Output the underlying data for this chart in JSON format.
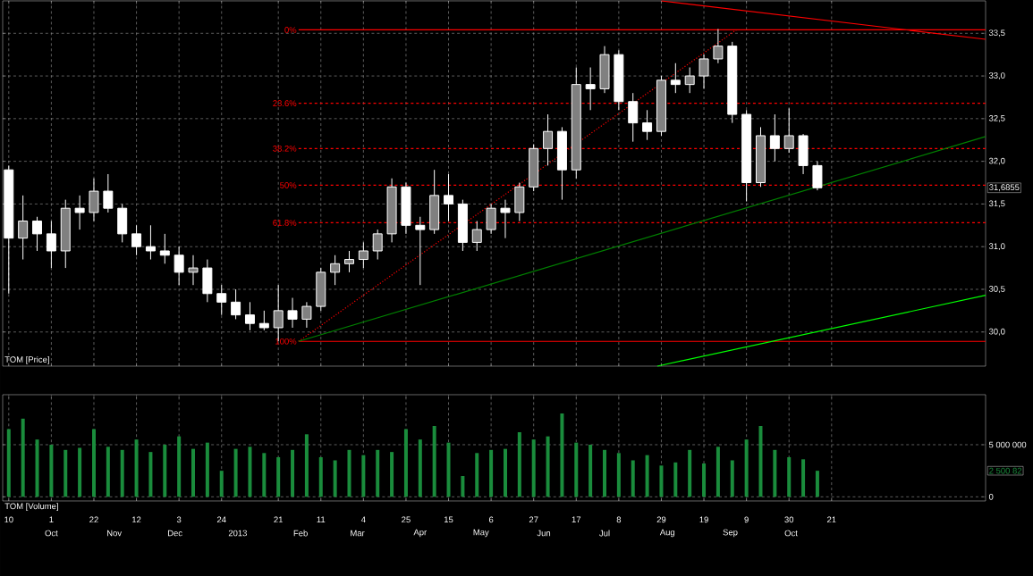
{
  "chart_data": [
    {
      "type": "candlestick",
      "title": "TOM [Price]",
      "x": [
        "2012-09-10",
        "2012-09-17",
        "2012-09-24",
        "2012-10-01",
        "2012-10-08",
        "2012-10-15",
        "2012-10-22",
        "2012-10-29",
        "2012-11-05",
        "2012-11-12",
        "2012-11-19",
        "2012-11-26",
        "2012-12-03",
        "2012-12-10",
        "2012-12-17",
        "2012-12-24",
        "2012-12-31",
        "2013-01-07",
        "2013-01-14",
        "2013-01-21",
        "2013-01-28",
        "2013-02-04",
        "2013-02-11",
        "2013-02-18",
        "2013-02-25",
        "2013-03-04",
        "2013-03-11",
        "2013-03-18",
        "2013-03-25",
        "2013-04-01",
        "2013-04-08",
        "2013-04-15",
        "2013-04-22",
        "2013-04-29",
        "2013-05-06",
        "2013-05-13",
        "2013-05-20",
        "2013-05-27",
        "2013-06-03",
        "2013-06-10",
        "2013-06-17",
        "2013-06-24",
        "2013-07-01",
        "2013-07-08",
        "2013-07-15",
        "2013-07-22",
        "2013-07-29",
        "2013-08-05",
        "2013-08-12",
        "2013-08-19",
        "2013-08-26",
        "2013-09-02",
        "2013-09-09",
        "2013-09-16",
        "2013-09-23",
        "2013-09-30",
        "2013-10-07",
        "2013-10-14"
      ],
      "ohlc": [
        [
          31.9,
          31.95,
          30.45,
          31.1
        ],
        [
          31.1,
          31.6,
          30.85,
          31.3
        ],
        [
          31.3,
          31.35,
          30.95,
          31.15
        ],
        [
          31.15,
          31.3,
          30.75,
          30.95
        ],
        [
          30.95,
          31.55,
          30.75,
          31.45
        ],
        [
          31.45,
          31.6,
          31.2,
          31.4
        ],
        [
          31.4,
          31.8,
          31.3,
          31.65
        ],
        [
          31.65,
          31.85,
          31.4,
          31.45
        ],
        [
          31.45,
          31.5,
          31.05,
          31.15
        ],
        [
          31.15,
          31.25,
          30.9,
          31.0
        ],
        [
          31.0,
          31.25,
          30.85,
          30.95
        ],
        [
          30.95,
          31.15,
          30.8,
          30.9
        ],
        [
          30.9,
          31.0,
          30.55,
          30.7
        ],
        [
          30.7,
          30.9,
          30.55,
          30.75
        ],
        [
          30.75,
          30.85,
          30.35,
          30.45
        ],
        [
          30.45,
          30.55,
          30.2,
          30.35
        ],
        [
          30.35,
          30.5,
          30.15,
          30.2
        ],
        [
          30.2,
          30.35,
          30.02,
          30.1
        ],
        [
          30.1,
          30.25,
          30.02,
          30.05
        ],
        [
          30.05,
          30.55,
          29.89,
          30.25
        ],
        [
          30.25,
          30.4,
          30.05,
          30.15
        ],
        [
          30.15,
          30.35,
          30.05,
          30.3
        ],
        [
          30.3,
          30.75,
          30.25,
          30.7
        ],
        [
          30.7,
          30.9,
          30.55,
          30.8
        ],
        [
          30.8,
          30.95,
          30.7,
          30.85
        ],
        [
          30.85,
          31.05,
          30.75,
          30.95
        ],
        [
          30.95,
          31.2,
          30.85,
          31.15
        ],
        [
          31.15,
          31.8,
          31.05,
          31.7
        ],
        [
          31.7,
          31.75,
          31.15,
          31.25
        ],
        [
          31.25,
          31.35,
          30.55,
          31.2
        ],
        [
          31.2,
          31.9,
          31.15,
          31.6
        ],
        [
          31.6,
          31.85,
          31.3,
          31.5
        ],
        [
          31.5,
          31.55,
          30.95,
          31.05
        ],
        [
          31.05,
          31.3,
          30.95,
          31.2
        ],
        [
          31.2,
          31.5,
          31.15,
          31.45
        ],
        [
          31.45,
          31.55,
          31.1,
          31.4
        ],
        [
          31.4,
          31.75,
          31.3,
          31.7
        ],
        [
          31.7,
          32.2,
          31.65,
          32.15
        ],
        [
          32.15,
          32.55,
          31.95,
          32.35
        ],
        [
          32.35,
          32.4,
          31.55,
          31.9
        ],
        [
          31.9,
          33.1,
          31.8,
          32.9
        ],
        [
          32.9,
          33.1,
          32.6,
          32.85
        ],
        [
          32.85,
          33.35,
          32.8,
          33.25
        ],
        [
          33.25,
          33.3,
          32.6,
          32.7
        ],
        [
          32.7,
          32.8,
          32.23,
          32.45
        ],
        [
          32.45,
          32.6,
          32.25,
          32.35
        ],
        [
          32.35,
          33.0,
          32.3,
          32.95
        ],
        [
          32.95,
          33.15,
          32.8,
          32.9
        ],
        [
          32.9,
          33.1,
          32.8,
          33.0
        ],
        [
          33.0,
          33.25,
          32.85,
          33.2
        ],
        [
          33.2,
          33.55,
          33.15,
          33.35
        ],
        [
          33.35,
          33.4,
          32.45,
          32.55
        ],
        [
          32.55,
          32.6,
          31.53,
          31.75
        ],
        [
          31.75,
          32.4,
          31.7,
          32.3
        ],
        [
          32.3,
          32.55,
          32.0,
          32.15
        ],
        [
          32.15,
          32.62,
          32.1,
          32.3
        ],
        [
          32.3,
          32.32,
          31.85,
          31.95
        ],
        [
          31.95,
          32.0,
          31.66,
          31.69
        ]
      ],
      "series": [
        {
          "type": "line",
          "name": "0%",
          "color": "#ff0000",
          "x": [
            "2013-01-31",
            "2014-01-05"
          ],
          "values": [
            33.54,
            33.54
          ]
        },
        {
          "type": "line",
          "name": "23.6%",
          "color": "#ff0000",
          "line_style": "dashed",
          "x": [
            "2013-01-31",
            "2014-01-05"
          ],
          "values": [
            32.68,
            32.68
          ]
        },
        {
          "type": "line",
          "name": "38.2%",
          "color": "#ff0000",
          "line_style": "dashed",
          "x": [
            "2013-01-31",
            "2014-01-05"
          ],
          "values": [
            32.15,
            32.15
          ]
        },
        {
          "type": "line",
          "name": "50%",
          "color": "#ff0000",
          "line_style": "dashed",
          "x": [
            "2013-01-31",
            "2014-01-05"
          ],
          "values": [
            31.72,
            31.72
          ]
        },
        {
          "type": "line",
          "name": "61.8%",
          "color": "#ff0000",
          "line_style": "dashed",
          "x": [
            "2013-01-31",
            "2014-01-05"
          ],
          "values": [
            31.28,
            31.28
          ]
        },
        {
          "type": "line",
          "name": "100%",
          "color": "#ff0000",
          "x": [
            "2013-01-31",
            "2014-01-05"
          ],
          "values": [
            29.89,
            29.89
          ]
        },
        {
          "type": "line",
          "color": "#ff0000",
          "line_style": "dotted",
          "x": [
            "2013-01-31",
            "2013-09-04"
          ],
          "values": [
            29.89,
            33.54
          ]
        },
        {
          "type": "line",
          "color": "#ff0000",
          "x": [
            "2013-07-29",
            "2014-01-05"
          ],
          "values": [
            33.88,
            33.43
          ]
        },
        {
          "type": "line",
          "color": "#008000",
          "x": [
            "2013-01-31",
            "2014-01-05"
          ],
          "values": [
            29.89,
            32.29
          ]
        },
        {
          "type": "line",
          "color": "#00ff00",
          "x": [
            "2013-07-27",
            "2014-01-05"
          ],
          "values": [
            29.6,
            30.43
          ]
        }
      ],
      "xlim": [
        "2012-09-07",
        "2014-01-05"
      ],
      "ylim": [
        29.6,
        33.88
      ],
      "xticks": [
        {
          "value": "2012-09-10",
          "label": null
        },
        {
          "value": "2012-10-01",
          "label": null
        },
        {
          "value": "2012-10-22",
          "label": null
        },
        {
          "value": "2012-11-12",
          "label": null
        },
        {
          "value": "2012-12-03",
          "label": null
        },
        {
          "value": "2012-12-24",
          "label": null
        },
        {
          "value": "2013-01-21",
          "label": null
        },
        {
          "value": "2013-02-11",
          "label": null
        },
        {
          "value": "2013-03-04",
          "label": null
        },
        {
          "value": "2013-03-25",
          "label": null
        },
        {
          "value": "2013-04-15",
          "label": null
        },
        {
          "value": "2013-05-06",
          "label": null
        },
        {
          "value": "2013-05-27",
          "label": null
        },
        {
          "value": "2013-06-17",
          "label": null
        },
        {
          "value": "2013-07-08",
          "label": null
        },
        {
          "value": "2013-07-29",
          "label": null
        },
        {
          "value": "2013-08-19",
          "label": null
        },
        {
          "value": "2013-09-09",
          "label": null
        },
        {
          "value": "2013-09-30",
          "label": null
        },
        {
          "value": "2013-10-21",
          "label": null
        }
      ],
      "yticks": [
        {
          "value": 30.0,
          "label": "30,0"
        },
        {
          "value": 30.5,
          "label": "30,5"
        },
        {
          "value": 31.0,
          "label": "31,0"
        },
        {
          "value": 31.5,
          "label": "31,5"
        },
        {
          "value": 32.0,
          "label": "32,0"
        },
        {
          "value": 32.5,
          "label": "32,5"
        },
        {
          "value": 33.0,
          "label": "33,0"
        },
        {
          "value": 33.5,
          "label": "33,5"
        }
      ],
      "grid": true,
      "tick_labels": "y",
      "annotations": [
        "31,6855"
      ]
    },
    {
      "type": "bar",
      "title": "TOM [Volume]",
      "color": "#1a8c3c",
      "x": [
        "2012-09-10",
        "2012-09-17",
        "2012-09-24",
        "2012-10-01",
        "2012-10-08",
        "2012-10-15",
        "2012-10-22",
        "2012-10-29",
        "2012-11-05",
        "2012-11-12",
        "2012-11-19",
        "2012-11-26",
        "2012-12-03",
        "2012-12-10",
        "2012-12-17",
        "2012-12-24",
        "2012-12-31",
        "2013-01-07",
        "2013-01-14",
        "2013-01-21",
        "2013-01-28",
        "2013-02-04",
        "2013-02-11",
        "2013-02-18",
        "2013-02-25",
        "2013-03-04",
        "2013-03-11",
        "2013-03-18",
        "2013-03-25",
        "2013-04-01",
        "2013-04-08",
        "2013-04-15",
        "2013-04-22",
        "2013-04-29",
        "2013-05-06",
        "2013-05-13",
        "2013-05-20",
        "2013-05-27",
        "2013-06-03",
        "2013-06-10",
        "2013-06-17",
        "2013-06-24",
        "2013-07-01",
        "2013-07-08",
        "2013-07-15",
        "2013-07-22",
        "2013-07-29",
        "2013-08-05",
        "2013-08-12",
        "2013-08-19",
        "2013-08-26",
        "2013-09-02",
        "2013-09-09",
        "2013-09-16",
        "2013-09-23",
        "2013-09-30",
        "2013-10-07",
        "2013-10-14"
      ],
      "values": [
        6500000,
        7500000,
        5500000,
        5000000,
        4500000,
        4700000,
        6500000,
        4800000,
        4500000,
        5500000,
        4300000,
        5000000,
        5800000,
        4600000,
        5200000,
        2500000,
        4600000,
        4800000,
        4200000,
        3800000,
        4500000,
        6000000,
        3800000,
        3500000,
        4500000,
        4000000,
        4500000,
        4300000,
        6500000,
        5500000,
        6800000,
        5200000,
        2000000,
        4200000,
        4500000,
        4600000,
        6200000,
        5500000,
        5800000,
        8000000,
        5200000,
        5000000,
        4500000,
        4200000,
        3500000,
        4000000,
        3000000,
        3300000,
        4500000,
        3200000,
        4800000,
        3500000,
        5500000,
        6800000,
        4500000,
        3800000,
        3600000,
        2500000
      ],
      "xlim": [
        "2012-09-07",
        "2014-01-05"
      ],
      "ylim": [
        -400000,
        9800000
      ],
      "xticks": [
        {
          "value": "2012-09-10",
          "label": "10"
        },
        {
          "value": "2012-10-01",
          "label": "1"
        },
        {
          "value": "2012-10-22",
          "label": "22"
        },
        {
          "value": "2012-11-12",
          "label": "12"
        },
        {
          "value": "2012-12-03",
          "label": "3"
        },
        {
          "value": "2012-12-24",
          "label": "24"
        },
        {
          "value": "2013-01-21",
          "label": "21"
        },
        {
          "value": "2013-02-11",
          "label": "11"
        },
        {
          "value": "2013-03-04",
          "label": "4"
        },
        {
          "value": "2013-03-25",
          "label": "25"
        },
        {
          "value": "2013-04-15",
          "label": "15"
        },
        {
          "value": "2013-05-06",
          "label": "6"
        },
        {
          "value": "2013-05-27",
          "label": "27"
        },
        {
          "value": "2013-06-17",
          "label": "17"
        },
        {
          "value": "2013-07-08",
          "label": "8"
        },
        {
          "value": "2013-07-29",
          "label": "29"
        },
        {
          "value": "2013-08-19",
          "label": "19"
        },
        {
          "value": "2013-09-09",
          "label": "9"
        },
        {
          "value": "2013-09-30",
          "label": "30"
        },
        {
          "value": "2013-10-21",
          "label": "21"
        }
      ],
      "x2ticks": [
        {
          "value": "2012-10-01",
          "label": "Oct"
        },
        {
          "value": "2012-11-01",
          "label": "Nov"
        },
        {
          "value": "2012-12-01",
          "label": "Dec"
        },
        {
          "value": "2013-01-01",
          "label": "2013"
        },
        {
          "value": "2013-02-01",
          "label": "Feb"
        },
        {
          "value": "2013-03-01",
          "label": "Mar"
        },
        {
          "value": "2013-04-01",
          "label": "Apr"
        },
        {
          "value": "2013-05-01",
          "label": "May"
        },
        {
          "value": "2013-06-01",
          "label": "Jun"
        },
        {
          "value": "2013-07-01",
          "label": "Jul"
        },
        {
          "value": "2013-08-01",
          "label": "Aug"
        },
        {
          "value": "2013-09-01",
          "label": "Sep"
        },
        {
          "value": "2013-10-01",
          "label": "Oct"
        }
      ],
      "yticks": [
        0,
        {
          "value": 5000000,
          "label": "5 000 000"
        }
      ],
      "grid": true,
      "x2lim": [
        "2012-09-07",
        "2014-01-05"
      ],
      "annotations": [
        "2 500 82"
      ]
    }
  ]
}
